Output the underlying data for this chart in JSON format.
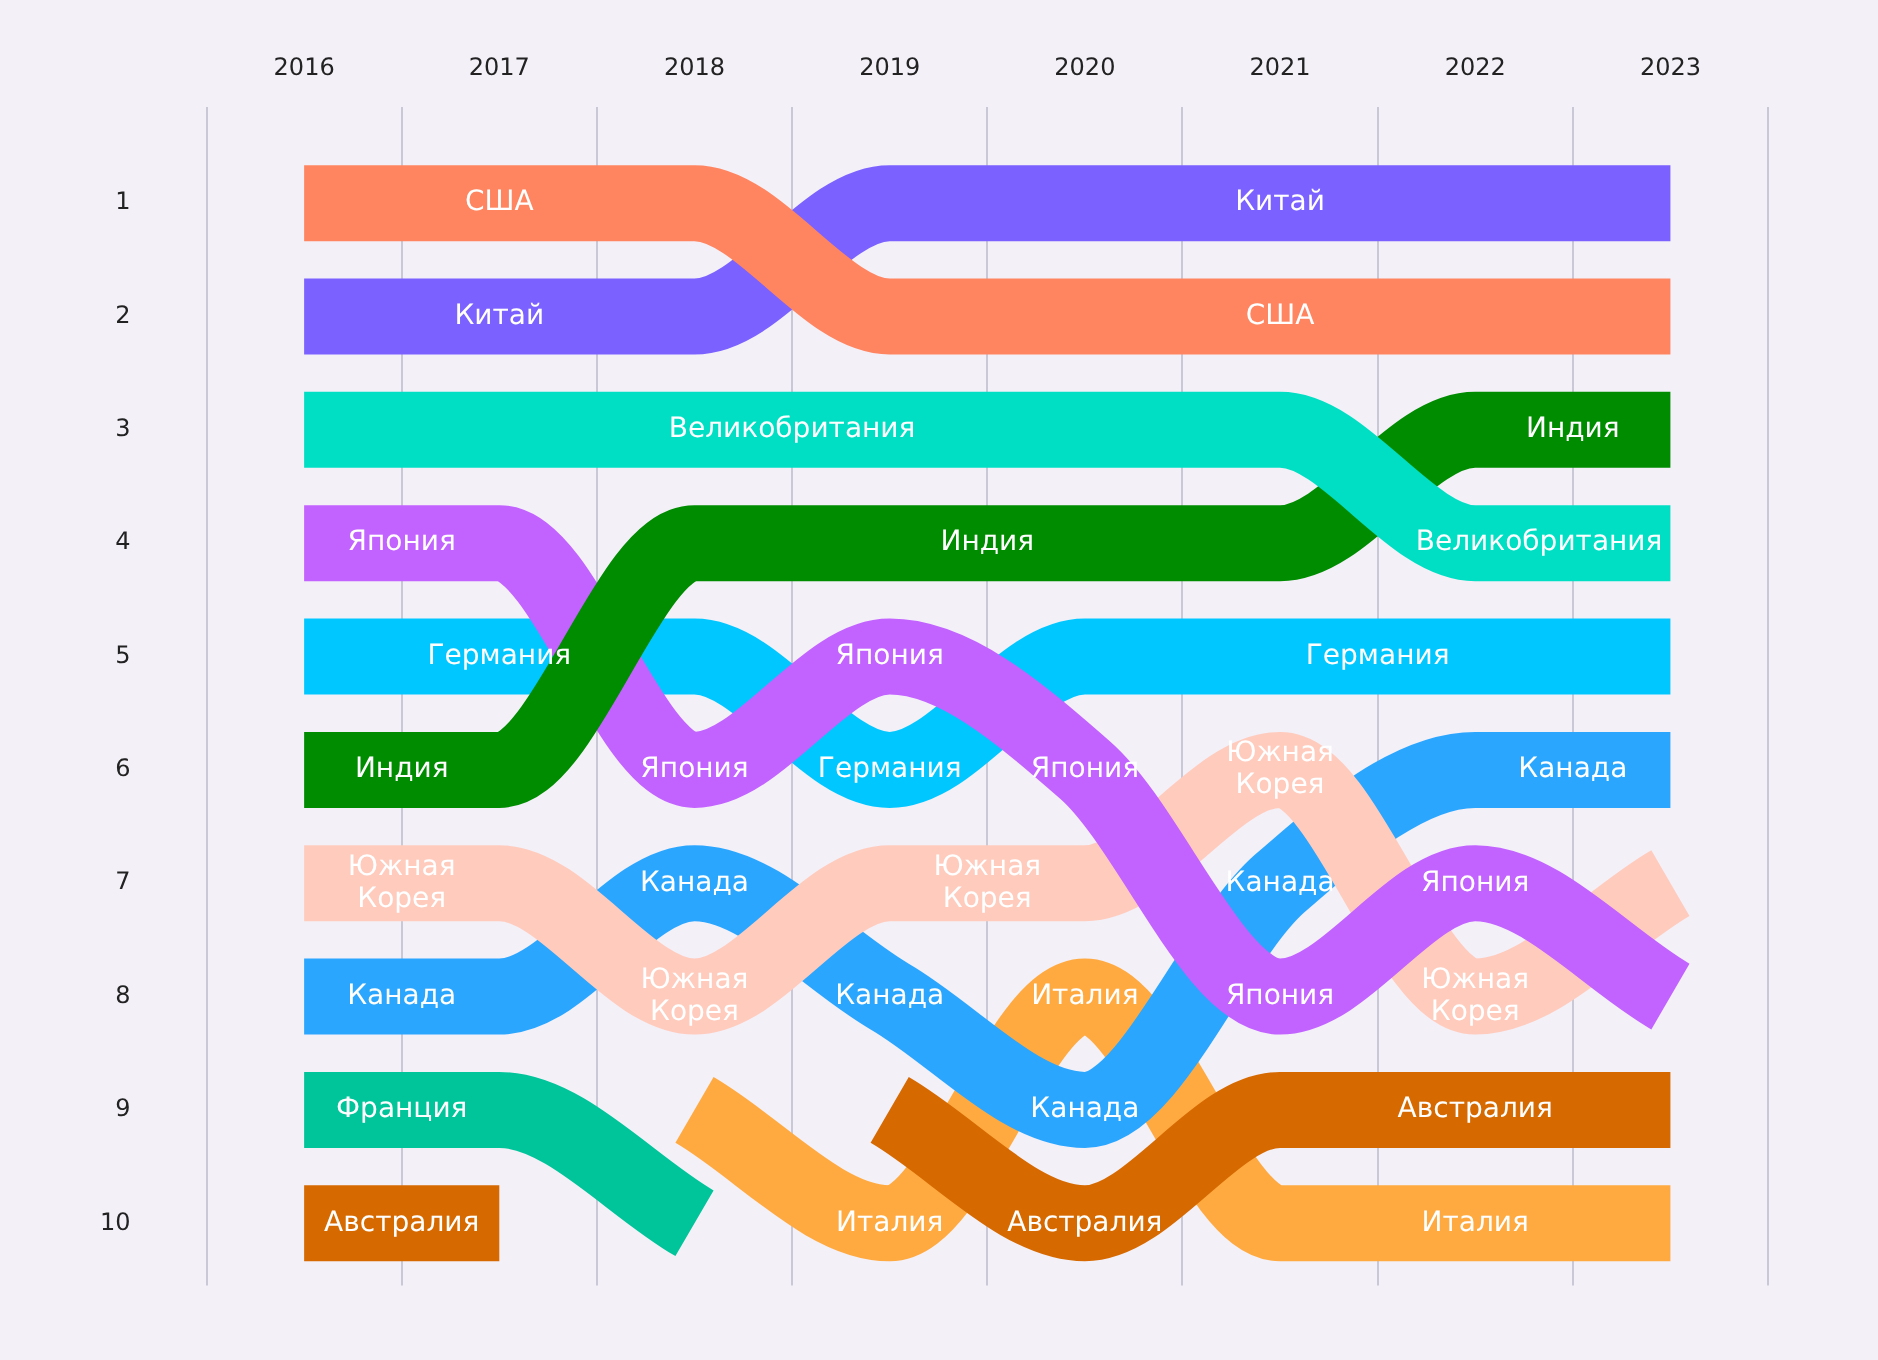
{
  "chart_data": {
    "type": "line",
    "categories": [
      "2016",
      "2017",
      "2018",
      "2019",
      "2020",
      "2021",
      "2022",
      "2023"
    ],
    "series": [
      {
        "name": "США",
        "color": "#ff8560",
        "values": [
          1,
          1,
          1,
          2,
          2,
          2,
          2,
          2
        ]
      },
      {
        "name": "Китай",
        "color": "#7b61ff",
        "values": [
          2,
          2,
          2,
          1,
          1,
          1,
          1,
          1
        ]
      },
      {
        "name": "Великобритания",
        "color": "#00dfc4",
        "values": [
          3,
          3,
          3,
          3,
          3,
          3,
          4,
          4
        ]
      },
      {
        "name": "Индия",
        "color": "#008c00",
        "values": [
          6,
          6,
          4,
          4,
          4,
          4,
          3,
          3
        ]
      },
      {
        "name": "Япония",
        "color": "#c262ff",
        "values": [
          4,
          4,
          6,
          5,
          6,
          8,
          7,
          8
        ]
      },
      {
        "name": "Германия",
        "color": "#00c7ff",
        "values": [
          5,
          5,
          5,
          6,
          5,
          5,
          5,
          5
        ]
      },
      {
        "name": "Южная Корея",
        "color": "#ffcbbd",
        "values": [
          7,
          7,
          8,
          7,
          7,
          6,
          8,
          7
        ]
      },
      {
        "name": "Канада",
        "color": "#2aa6ff",
        "values": [
          8,
          8,
          7,
          8,
          9,
          7,
          6,
          6
        ]
      },
      {
        "name": "Франция",
        "color": "#00c49a",
        "values": [
          9,
          9,
          10,
          null,
          null,
          null,
          null,
          null
        ]
      },
      {
        "name": "Австралия",
        "color": "#d66a00",
        "values": [
          10,
          10,
          null,
          9,
          10,
          9,
          9,
          9
        ]
      },
      {
        "name": "Италия",
        "color": "#ffaa40",
        "values": [
          null,
          null,
          9,
          10,
          8,
          10,
          10,
          10
        ]
      }
    ],
    "ylim": [
      10.55,
      0.15
    ],
    "yticks": [
      1,
      2,
      3,
      4,
      5,
      6,
      7,
      8,
      9,
      10
    ],
    "grid": "x",
    "legend": false
  }
}
